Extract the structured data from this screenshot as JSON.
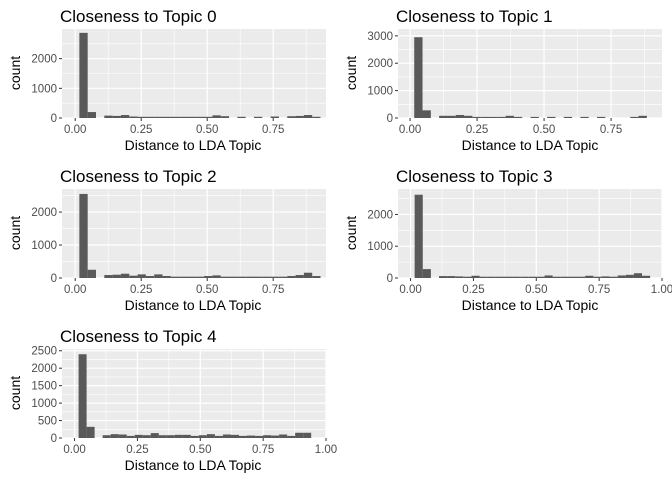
{
  "chart_data": [
    {
      "type": "bar",
      "title": "Closeness to Topic 0",
      "xlabel": "Distance to LDA Topic",
      "ylabel": "count",
      "xlim": [
        -0.05,
        0.95
      ],
      "ylim": [
        0,
        3000
      ],
      "x_ticks": [
        0,
        0.25,
        0.5,
        0.75
      ],
      "x_tick_labels": [
        "0.00",
        "0.25",
        "0.50",
        "0.75"
      ],
      "y_ticks": [
        0,
        1000,
        2000
      ],
      "y_tick_labels": [
        "0",
        "1000",
        "2000"
      ],
      "bin_width": 0.0315,
      "bin_centers": [
        0.0,
        0.0315,
        0.063,
        0.0945,
        0.126,
        0.1575,
        0.189,
        0.2205,
        0.252,
        0.2835,
        0.315,
        0.3465,
        0.378,
        0.4095,
        0.441,
        0.4725,
        0.504,
        0.5355,
        0.567,
        0.5985,
        0.63,
        0.6615,
        0.693,
        0.7245,
        0.756,
        0.7875,
        0.819,
        0.8505,
        0.882,
        0.9135
      ],
      "values": [
        0,
        2870,
        200,
        0,
        80,
        70,
        100,
        50,
        40,
        40,
        40,
        40,
        40,
        40,
        40,
        40,
        40,
        90,
        60,
        0,
        40,
        0,
        40,
        0,
        50,
        0,
        60,
        70,
        100,
        40
      ],
      "grid": true
    },
    {
      "type": "bar",
      "title": "Closeness to Topic 1",
      "xlabel": "Distance to LDA Topic",
      "ylabel": "count",
      "xlim": [
        -0.045,
        0.94
      ],
      "ylim": [
        0,
        3250
      ],
      "x_ticks": [
        0,
        0.25,
        0.5,
        0.75
      ],
      "x_tick_labels": [
        "0.00",
        "0.25",
        "0.50",
        "0.75"
      ],
      "y_ticks": [
        0,
        1000,
        2000,
        3000
      ],
      "y_tick_labels": [
        "0",
        "1000",
        "2000",
        "3000"
      ],
      "bin_width": 0.031,
      "bin_centers": [
        0.0,
        0.031,
        0.062,
        0.093,
        0.124,
        0.155,
        0.186,
        0.217,
        0.248,
        0.279,
        0.31,
        0.341,
        0.372,
        0.403,
        0.434,
        0.465,
        0.496,
        0.527,
        0.558,
        0.589,
        0.62,
        0.651,
        0.682,
        0.713,
        0.744,
        0.775,
        0.806,
        0.837,
        0.868,
        0.899
      ],
      "values": [
        0,
        2950,
        280,
        0,
        80,
        80,
        110,
        80,
        40,
        40,
        40,
        40,
        80,
        40,
        0,
        40,
        0,
        40,
        0,
        40,
        0,
        40,
        0,
        40,
        0,
        0,
        0,
        40,
        80,
        0
      ],
      "grid": true
    },
    {
      "type": "bar",
      "title": "Closeness to Topic 2",
      "xlabel": "Distance to LDA Topic",
      "ylabel": "count",
      "xlim": [
        -0.05,
        0.95
      ],
      "ylim": [
        0,
        2700
      ],
      "x_ticks": [
        0,
        0.25,
        0.5,
        0.75
      ],
      "x_tick_labels": [
        "0.00",
        "0.25",
        "0.50",
        "0.75"
      ],
      "y_ticks": [
        0,
        1000,
        2000
      ],
      "y_tick_labels": [
        "0",
        "1000",
        "2000"
      ],
      "bin_width": 0.0315,
      "bin_centers": [
        0.0,
        0.0315,
        0.063,
        0.0945,
        0.126,
        0.1575,
        0.189,
        0.2205,
        0.252,
        0.2835,
        0.315,
        0.3465,
        0.378,
        0.4095,
        0.441,
        0.4725,
        0.504,
        0.5355,
        0.567,
        0.5985,
        0.63,
        0.6615,
        0.693,
        0.7245,
        0.756,
        0.7875,
        0.819,
        0.8505,
        0.882,
        0.9135
      ],
      "values": [
        0,
        2550,
        250,
        0,
        90,
        100,
        130,
        70,
        110,
        60,
        110,
        60,
        40,
        40,
        40,
        40,
        60,
        80,
        40,
        40,
        40,
        40,
        40,
        40,
        40,
        40,
        60,
        90,
        160,
        60
      ],
      "grid": true
    },
    {
      "type": "bar",
      "title": "Closeness to Topic 3",
      "xlabel": "Distance to LDA Topic",
      "ylabel": "count",
      "xlim": [
        -0.05,
        1.0
      ],
      "ylim": [
        0,
        2800
      ],
      "x_ticks": [
        0,
        0.25,
        0.5,
        0.75,
        1
      ],
      "x_tick_labels": [
        "0.00",
        "0.25",
        "0.50",
        "0.75",
        "1.00"
      ],
      "y_ticks": [
        0,
        1000,
        2000
      ],
      "y_tick_labels": [
        "0",
        "1000",
        "2000"
      ],
      "bin_width": 0.0323,
      "bin_centers": [
        0.0,
        0.0323,
        0.0646,
        0.0969,
        0.1292,
        0.1615,
        0.1938,
        0.2261,
        0.2584,
        0.2907,
        0.323,
        0.3553,
        0.3876,
        0.4199,
        0.4522,
        0.4845,
        0.5168,
        0.5491,
        0.5814,
        0.6137,
        0.646,
        0.6783,
        0.7106,
        0.7429,
        0.7752,
        0.8075,
        0.8398,
        0.8721,
        0.9044,
        0.9367
      ],
      "values": [
        0,
        2620,
        280,
        0,
        60,
        60,
        50,
        40,
        70,
        40,
        40,
        40,
        40,
        40,
        40,
        40,
        40,
        80,
        40,
        40,
        40,
        40,
        70,
        40,
        50,
        40,
        80,
        100,
        150,
        70
      ],
      "grid": true
    },
    {
      "type": "bar",
      "title": "Closeness to Topic 4",
      "xlabel": "Distance to LDA Topic",
      "ylabel": "count",
      "xlim": [
        -0.05,
        1.0
      ],
      "ylim": [
        0,
        2550
      ],
      "x_ticks": [
        0,
        0.25,
        0.5,
        0.75,
        1
      ],
      "x_tick_labels": [
        "0.00",
        "0.25",
        "0.50",
        "0.75",
        "1.00"
      ],
      "y_ticks": [
        0,
        500,
        1000,
        1500,
        2000,
        2500
      ],
      "y_tick_labels": [
        "0",
        "500",
        "1000",
        "1500",
        "2000",
        "2500"
      ],
      "bin_width": 0.0319,
      "bin_centers": [
        0.0,
        0.0319,
        0.0638,
        0.0957,
        0.1276,
        0.1595,
        0.1914,
        0.2233,
        0.2552,
        0.2871,
        0.319,
        0.3509,
        0.3828,
        0.4147,
        0.4466,
        0.4785,
        0.5104,
        0.5423,
        0.5742,
        0.6061,
        0.638,
        0.6699,
        0.7018,
        0.7337,
        0.7656,
        0.7975,
        0.8294,
        0.8613,
        0.8932,
        0.9251
      ],
      "values": [
        0,
        2400,
        320,
        0,
        80,
        110,
        100,
        60,
        90,
        80,
        140,
        80,
        80,
        90,
        90,
        60,
        80,
        110,
        60,
        100,
        90,
        60,
        70,
        60,
        80,
        70,
        100,
        60,
        150,
        150
      ],
      "grid": true
    }
  ],
  "colors": {
    "panel_bg": "#ebebeb",
    "grid_major": "#ffffff",
    "bar_fill": "#595959",
    "tick_color": "#333333",
    "tick_label_color": "#4d4d4d",
    "text_color": "#000000"
  }
}
